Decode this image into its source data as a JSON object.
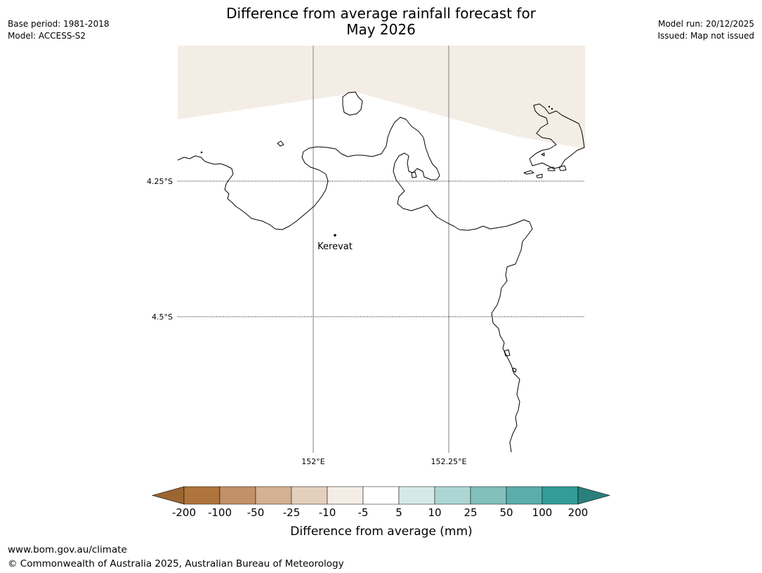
{
  "title_line1": "Difference from average rainfall forecast for",
  "title_line2": "May 2026",
  "meta_left": {
    "base_period": "Base period: 1981-2018",
    "model": "Model: ACCESS-S2"
  },
  "meta_right": {
    "model_run": "Model run: 20/12/2025",
    "issued": "Issued: Map not issued"
  },
  "map": {
    "lat_labels": [
      "4.25°S",
      "4.5°S"
    ],
    "lon_labels": [
      "152°E",
      "152.25°E"
    ],
    "place": {
      "name": "Kerevat"
    },
    "shaded_category": "-10 to -5"
  },
  "colorbar": {
    "ticks": [
      "-200",
      "-100",
      "-50",
      "-25",
      "-10",
      "-5",
      "5",
      "10",
      "25",
      "50",
      "100",
      "200"
    ],
    "colors": [
      "#9a6632",
      "#ae743b",
      "#c2916a",
      "#d4b192",
      "#e4cfbd",
      "#f4ede6",
      "#ffffff",
      "#d6e9e8",
      "#acd6d4",
      "#82c0bc",
      "#5aadab",
      "#339b98",
      "#2b7f7c"
    ],
    "label": "Difference from average (mm)"
  },
  "footer": {
    "url": "www.bom.gov.au/climate",
    "copyright": "© Commonwealth of Australia 2025, Australian Bureau of Meteorology"
  }
}
